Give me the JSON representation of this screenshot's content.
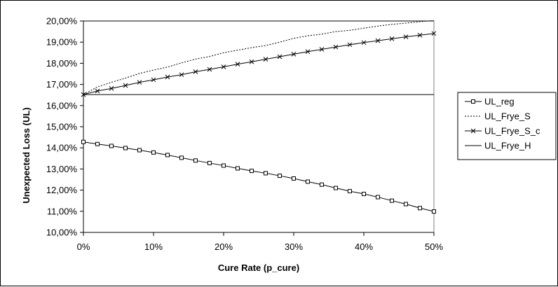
{
  "chart_data": {
    "type": "line",
    "title": "",
    "xlabel": "Cure Rate (p_cure)",
    "ylabel": "Unexpected Loss (UL)",
    "xlim": [
      0,
      0.5
    ],
    "ylim": [
      10,
      20
    ],
    "x_ticks": [
      "0%",
      "10%",
      "20%",
      "30%",
      "40%",
      "50%"
    ],
    "y_ticks": [
      "10,00%",
      "11,00%",
      "12,00%",
      "13,00%",
      "14,00%",
      "15,00%",
      "16,00%",
      "17,00%",
      "18,00%",
      "19,00%",
      "20,00%"
    ],
    "grid": "horizontal top line only",
    "legend_position": "right",
    "x": [
      0,
      0.02,
      0.04,
      0.06,
      0.08,
      0.1,
      0.12,
      0.14,
      0.16,
      0.18,
      0.2,
      0.22,
      0.24,
      0.26,
      0.28,
      0.3,
      0.32,
      0.34,
      0.36,
      0.38,
      0.4,
      0.42,
      0.44,
      0.46,
      0.48,
      0.5
    ],
    "series": [
      {
        "name": "UL_reg",
        "color": "#000000",
        "style": "solid",
        "marker": "square",
        "values": [
          14.28,
          14.18,
          14.09,
          13.99,
          13.89,
          13.78,
          13.66,
          13.53,
          13.4,
          13.28,
          13.16,
          13.03,
          12.91,
          12.8,
          12.68,
          12.55,
          12.4,
          12.26,
          12.1,
          11.95,
          11.82,
          11.67,
          11.5,
          11.34,
          11.15,
          10.99
        ]
      },
      {
        "name": "UL_Frye_S",
        "color": "#000000",
        "style": "dotted",
        "marker": "none",
        "values": [
          16.52,
          16.88,
          17.1,
          17.3,
          17.52,
          17.68,
          17.82,
          18.02,
          18.2,
          18.32,
          18.5,
          18.62,
          18.74,
          18.84,
          19.0,
          19.18,
          19.3,
          19.38,
          19.5,
          19.56,
          19.66,
          19.76,
          19.84,
          19.9,
          19.97,
          20.02
        ]
      },
      {
        "name": "UL_Frye_S_c",
        "color": "#000000",
        "style": "solid",
        "marker": "x",
        "values": [
          16.52,
          16.69,
          16.81,
          16.95,
          17.1,
          17.22,
          17.35,
          17.46,
          17.6,
          17.71,
          17.83,
          17.96,
          18.07,
          18.19,
          18.31,
          18.43,
          18.55,
          18.66,
          18.77,
          18.88,
          18.98,
          19.07,
          19.16,
          19.25,
          19.33,
          19.41
        ]
      },
      {
        "name": "UL_Frye_H",
        "color": "#000000",
        "style": "solid",
        "marker": "none",
        "values": [
          16.52,
          16.52,
          16.52,
          16.52,
          16.52,
          16.52,
          16.52,
          16.52,
          16.52,
          16.52,
          16.52,
          16.52,
          16.52,
          16.52,
          16.52,
          16.52,
          16.52,
          16.52,
          16.52,
          16.52,
          16.52,
          16.52,
          16.52,
          16.52,
          16.52,
          16.52
        ]
      }
    ]
  }
}
